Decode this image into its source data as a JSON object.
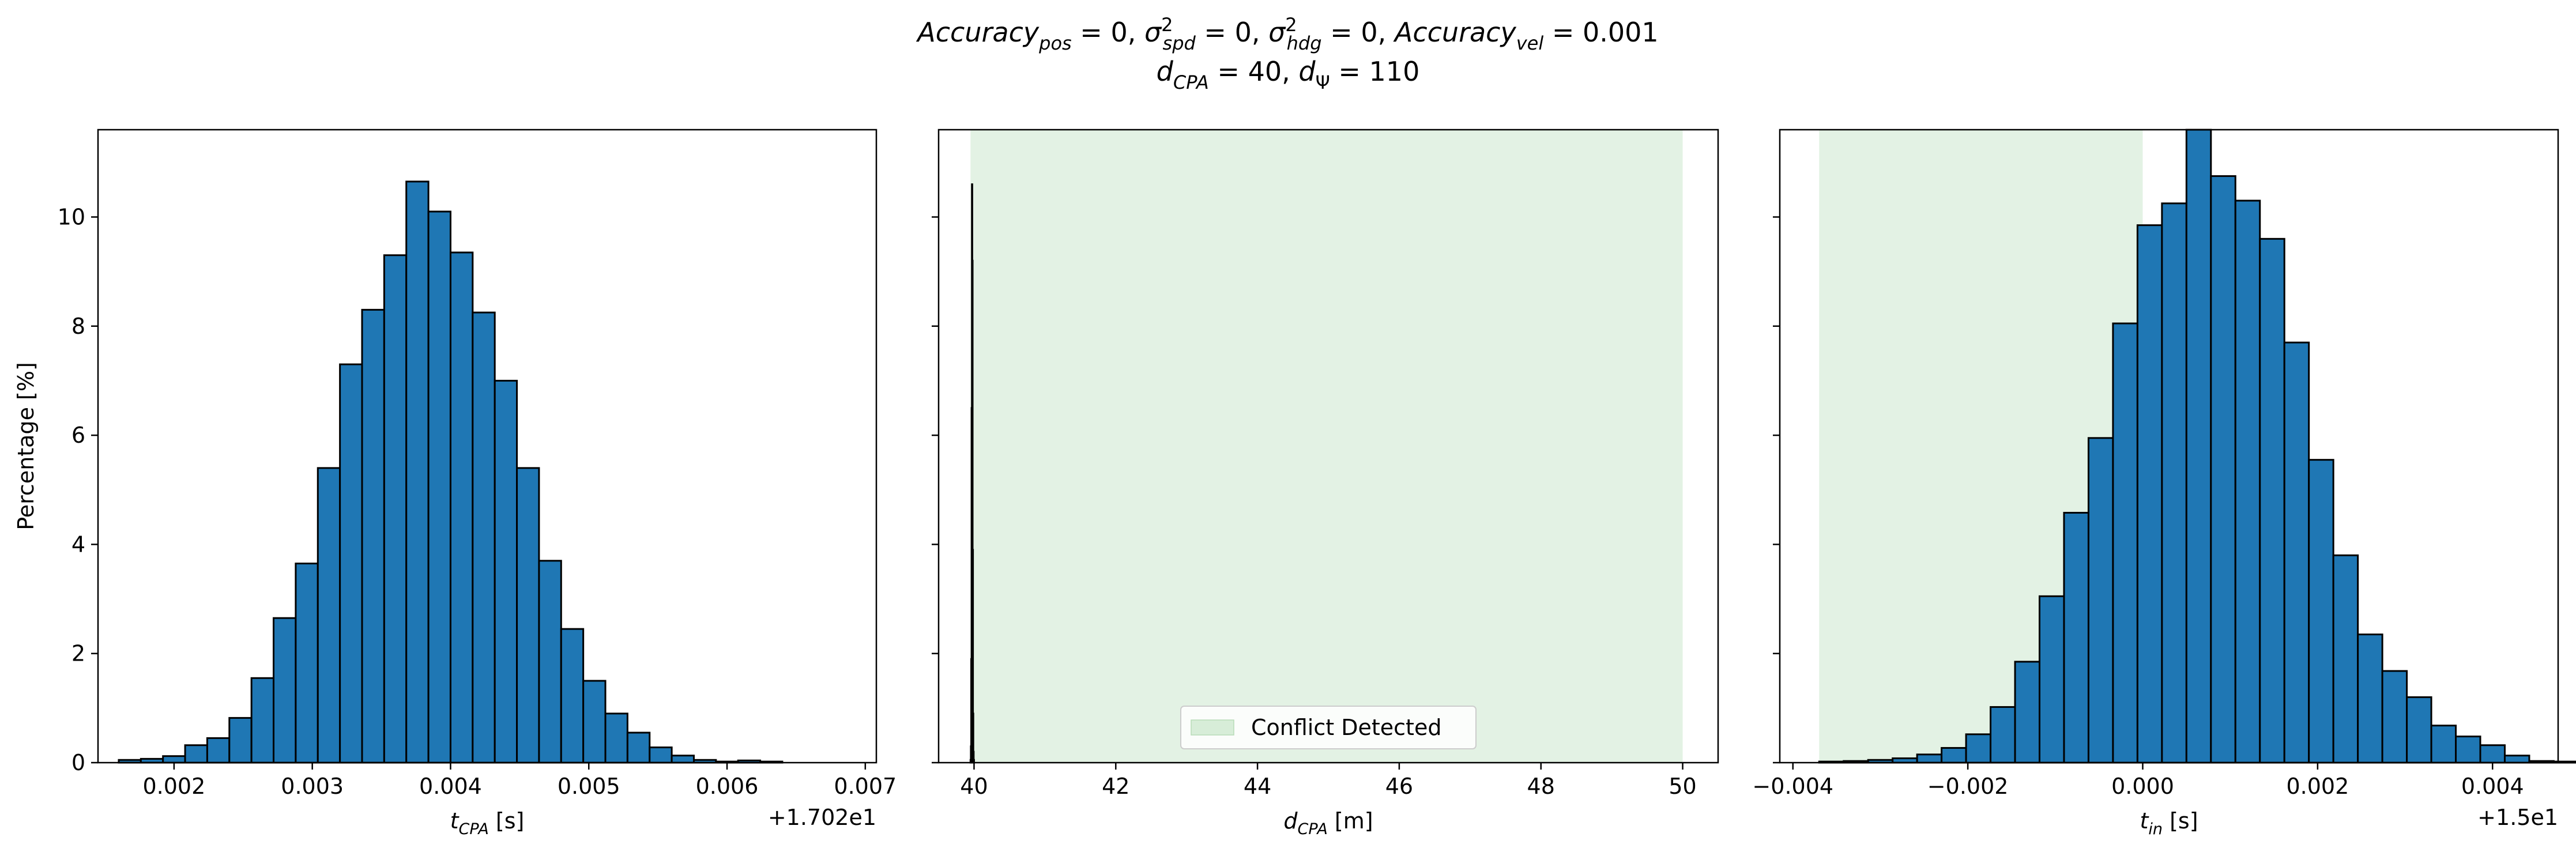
{
  "figure": {
    "title_line1": {
      "acc_pos_base": "Accuracy",
      "acc_pos_sub": "pos",
      "acc_pos_val": " = 0, ",
      "sig_spd_base": "σ",
      "sig_spd_sup": "2",
      "sig_spd_sub": "spd",
      "sig_spd_val": " = 0, ",
      "sig_hdg_base": "σ",
      "sig_hdg_sup": "2",
      "sig_hdg_sub": "hdg",
      "sig_hdg_val": " = 0, ",
      "acc_vel_base": "Accuracy",
      "acc_vel_sub": "vel",
      "acc_vel_val": " = 0.001"
    },
    "title_line2": {
      "dcpa_base": "d",
      "dcpa_sub": "CPA",
      "dcpa_val": " = 40, ",
      "dpsi_base": "d",
      "dpsi_sub": "Ψ",
      "dpsi_val": " = 110"
    }
  },
  "colors": {
    "bar_fill": "#1f77b4",
    "bar_edge": "#000000",
    "conflict_region": "#c8e6c9"
  },
  "chart_data": [
    {
      "type": "bar",
      "subplot": "left",
      "ylabel": "Percentage [%]",
      "xlabel_base": "t",
      "xlabel_sub": "CPA",
      "xlabel_unit": " [s]",
      "offset_text": "+1.702e1",
      "xlim": [
        0.00145,
        0.00708
      ],
      "ylim": [
        0,
        11.6
      ],
      "xticks": [
        0.002,
        0.003,
        0.004,
        0.005,
        0.006,
        0.007
      ],
      "xtick_labels": [
        "0.002",
        "0.003",
        "0.004",
        "0.005",
        "0.006",
        "0.007"
      ],
      "yticks": [
        0,
        2,
        4,
        6,
        8,
        10
      ],
      "ytick_labels": [
        "0",
        "2",
        "4",
        "6",
        "8",
        "10"
      ],
      "bin_start": 0.0016,
      "bin_width": 0.00016,
      "values": [
        0.05,
        0.07,
        0.12,
        0.32,
        0.45,
        0.82,
        1.55,
        2.65,
        3.65,
        5.4,
        7.3,
        8.3,
        9.3,
        10.65,
        10.1,
        9.35,
        8.25,
        7.0,
        5.4,
        3.7,
        2.45,
        1.5,
        0.9,
        0.55,
        0.28,
        0.13,
        0.05,
        0.02,
        0.04,
        0.02
      ],
      "shaded_region": null
    },
    {
      "type": "bar",
      "subplot": "middle",
      "xlabel_base": "d",
      "xlabel_sub": "CPA",
      "xlabel_unit": " [m]",
      "xlim": [
        39.5,
        50.5
      ],
      "ylim": [
        0,
        11.6
      ],
      "xticks": [
        40,
        42,
        44,
        46,
        48,
        50
      ],
      "xtick_labels": [
        "40",
        "42",
        "44",
        "46",
        "48",
        "50"
      ],
      "yticks": [
        0,
        2,
        4,
        6,
        8,
        10
      ],
      "bin_start": 39.95,
      "bin_width": 0.005,
      "values": [
        0.05,
        0.3,
        1.9,
        6.5,
        10.6,
        9.2,
        3.9,
        0.9,
        0.2,
        0.05
      ],
      "shaded_region": [
        39.95,
        50.0
      ],
      "legend": {
        "label": "Conflict Detected",
        "loc": "lower center"
      }
    },
    {
      "type": "bar",
      "subplot": "right",
      "xlabel_base": "t",
      "xlabel_sub": "in",
      "xlabel_unit": " [s]",
      "offset_text": "+1.5e1",
      "xlim": [
        -0.00415,
        0.00475
      ],
      "ylim": [
        0,
        11.6
      ],
      "xticks": [
        -0.004,
        -0.002,
        0.0,
        0.002,
        0.004
      ],
      "xtick_labels": [
        "−0.004",
        "−0.002",
        "0.000",
        "0.002",
        "0.004"
      ],
      "yticks": [
        0,
        2,
        4,
        6,
        8,
        10
      ],
      "bin_start": -0.0037,
      "bin_width": 0.00028,
      "values": [
        0.02,
        0.03,
        0.05,
        0.08,
        0.15,
        0.27,
        0.52,
        1.02,
        1.85,
        3.05,
        4.58,
        5.95,
        8.05,
        9.85,
        10.25,
        11.6,
        10.75,
        10.3,
        9.6,
        7.7,
        5.55,
        3.8,
        2.35,
        1.68,
        1.2,
        0.68,
        0.48,
        0.32,
        0.13,
        0.03,
        0.02,
        0.02,
        0.02,
        0.02,
        0.02,
        0.02
      ],
      "shaded_region": [
        -0.0037,
        0.0
      ]
    }
  ]
}
